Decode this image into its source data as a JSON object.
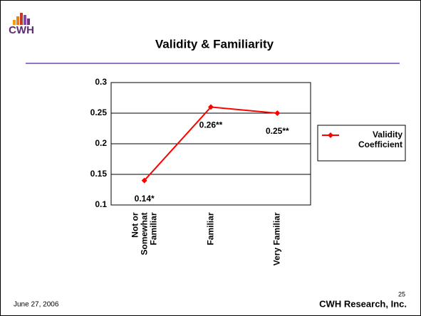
{
  "logo": "CWH",
  "chart_data": {
    "type": "line",
    "title": "Validity & Familiarity",
    "categories": [
      "Not or Somewhat Familiar",
      "Familiar",
      "Very Familiar"
    ],
    "series": [
      {
        "name": "Validity Coefficient",
        "color": "#ff0000",
        "values": [
          0.14,
          0.26,
          0.25
        ],
        "value_labels": [
          "0.14*",
          "0.26**",
          "0.25**"
        ]
      }
    ],
    "ylim": [
      0.1,
      0.3
    ],
    "yticks": [
      0.1,
      0.15,
      0.2,
      0.25,
      0.3
    ],
    "grid": true,
    "legend": "right"
  },
  "footer": {
    "date": "June 27, 2006",
    "page": "25",
    "company": "CWH Research, Inc."
  }
}
